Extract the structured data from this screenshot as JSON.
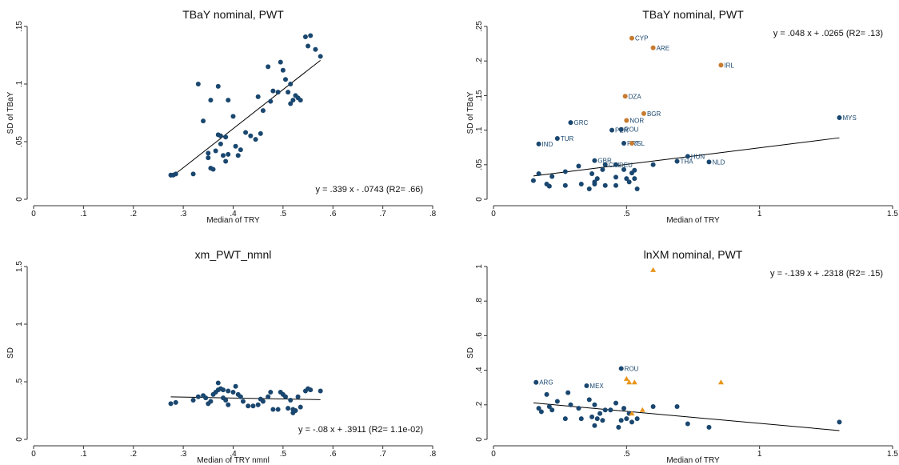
{
  "chart_data": [
    {
      "type": "scatter",
      "title": "TBaY nominal, PWT",
      "xlabel": "Median of TRY",
      "ylabel": "SD of TBaY",
      "xlim": [
        0,
        0.8
      ],
      "ylim": [
        0,
        0.15
      ],
      "xticks": [
        0,
        {
          "value": 0.1,
          "label": ".1"
        },
        {
          "value": 0.2,
          "label": ".2"
        },
        {
          "value": 0.3,
          "label": ".3"
        },
        {
          "value": 0.4,
          "label": ".4"
        },
        {
          "value": 0.5,
          "label": ".5"
        },
        {
          "value": 0.6,
          "label": ".6"
        },
        {
          "value": 0.7,
          "label": ".7"
        },
        {
          "value": 0.8,
          "label": ".8"
        }
      ],
      "yticks": [
        0,
        {
          "value": 0.05,
          "label": ".05"
        },
        {
          "value": 0.1,
          "label": ".1"
        },
        {
          "value": 0.15,
          "label": ".15"
        }
      ],
      "annotation": "y =  .339 x -  .0743 (R2=  .66)",
      "annotation_position": "bottom-right",
      "fit_line": {
        "x": [
          0.275,
          0.575
        ],
        "y": [
          0.0189,
          0.1206
        ]
      },
      "series": [
        {
          "color": "#1a476f",
          "marker": "circle",
          "x": [
            0.275,
            0.28,
            0.285,
            0.32,
            0.33,
            0.34,
            0.35,
            0.35,
            0.355,
            0.355,
            0.36,
            0.365,
            0.37,
            0.37,
            0.375,
            0.375,
            0.38,
            0.385,
            0.385,
            0.39,
            0.39,
            0.4,
            0.405,
            0.41,
            0.415,
            0.425,
            0.435,
            0.445,
            0.45,
            0.455,
            0.46,
            0.47,
            0.475,
            0.48,
            0.49,
            0.495,
            0.5,
            0.505,
            0.51,
            0.515,
            0.515,
            0.52,
            0.525,
            0.53,
            0.535,
            0.545,
            0.55,
            0.555,
            0.565,
            0.575
          ],
          "values": [
            0.021,
            0.021,
            0.022,
            0.022,
            0.1,
            0.068,
            0.04,
            0.036,
            0.086,
            0.027,
            0.026,
            0.042,
            0.098,
            0.056,
            0.048,
            0.055,
            0.038,
            0.054,
            0.033,
            0.086,
            0.039,
            0.072,
            0.046,
            0.038,
            0.043,
            0.058,
            0.055,
            0.052,
            0.089,
            0.057,
            0.077,
            0.115,
            0.085,
            0.094,
            0.093,
            0.119,
            0.112,
            0.104,
            0.093,
            0.1,
            0.083,
            0.086,
            0.09,
            0.088,
            0.086,
            0.141,
            0.133,
            0.142,
            0.13,
            0.124
          ]
        }
      ]
    },
    {
      "type": "scatter",
      "title": "TBaY nominal, PWT",
      "xlabel": "Median of TRY",
      "ylabel": "SD of TBaY",
      "xlim": [
        0,
        1.5
      ],
      "ylim": [
        0,
        0.25
      ],
      "xticks": [
        0,
        {
          "value": 0.5,
          "label": ".5"
        },
        1,
        1.5
      ],
      "yticks": [
        0,
        {
          "value": 0.05,
          "label": ".05"
        },
        {
          "value": 0.1,
          "label": ".1"
        },
        {
          "value": 0.15,
          "label": ".15"
        },
        {
          "value": 0.2,
          "label": ".2"
        },
        {
          "value": 0.25,
          "label": ".25"
        }
      ],
      "annotation": "y =  .048 x +  .0265 (R2=  .13)",
      "annotation_position": "top-right",
      "fit_line": {
        "x": [
          0.15,
          1.3
        ],
        "y": [
          0.0337,
          0.0889
        ]
      },
      "series": [
        {
          "color": "#1a476f",
          "marker": "circle",
          "x": [
            1.3,
            0.29,
            0.445,
            0.48,
            0.24,
            0.17,
            0.49,
            0.73,
            0.69,
            0.81,
            0.38,
            0.42,
            0.46,
            0.15,
            0.17,
            0.2,
            0.21,
            0.22,
            0.27,
            0.27,
            0.32,
            0.33,
            0.36,
            0.37,
            0.38,
            0.38,
            0.39,
            0.41,
            0.42,
            0.46,
            0.46,
            0.49,
            0.5,
            0.51,
            0.52,
            0.53,
            0.53,
            0.54,
            0.6
          ],
          "values": [
            0.118,
            0.111,
            0.1,
            0.101,
            0.088,
            0.08,
            0.081,
            0.062,
            0.055,
            0.054,
            0.056,
            0.05,
            0.05,
            0.027,
            0.037,
            0.022,
            0.019,
            0.033,
            0.04,
            0.02,
            0.048,
            0.022,
            0.015,
            0.037,
            0.025,
            0.022,
            0.03,
            0.043,
            0.02,
            0.032,
            0.02,
            0.043,
            0.03,
            0.025,
            0.038,
            0.042,
            0.03,
            0.015,
            0.05
          ],
          "labels": [
            "MYS",
            "GRC",
            "PER",
            "ROU",
            "TUR",
            "IND",
            "PRT",
            "HUN",
            "THA",
            "NLD",
            "GBR",
            "CHL",
            "DEU",
            null,
            null,
            null,
            null,
            null,
            null,
            null,
            null,
            null,
            null,
            null,
            null,
            null,
            null,
            null,
            null,
            null,
            null,
            null,
            null,
            null,
            null,
            null,
            null,
            null,
            null
          ]
        },
        {
          "color": "#c87b2f",
          "marker": "circle",
          "x": [
            0.52,
            0.6,
            0.855,
            0.495,
            0.565,
            0.5,
            0.52
          ],
          "values": [
            0.233,
            0.219,
            0.194,
            0.149,
            0.124,
            0.114,
            0.081
          ],
          "labels": [
            "CYP",
            "ARE",
            "IRL",
            "DZA",
            "BGR",
            "NOR",
            "ISL"
          ]
        }
      ]
    },
    {
      "type": "scatter",
      "title": "xm_PWT_nmnl",
      "xlabel": "Median of TRY nmnl",
      "ylabel": "SD",
      "xlim": [
        0,
        0.8
      ],
      "ylim": [
        0,
        1.5
      ],
      "xticks": [
        0,
        {
          "value": 0.1,
          "label": ".1"
        },
        {
          "value": 0.2,
          "label": ".2"
        },
        {
          "value": 0.3,
          "label": ".3"
        },
        {
          "value": 0.4,
          "label": ".4"
        },
        {
          "value": 0.5,
          "label": ".5"
        },
        {
          "value": 0.6,
          "label": ".6"
        },
        {
          "value": 0.7,
          "label": ".7"
        },
        {
          "value": 0.8,
          "label": ".8"
        }
      ],
      "yticks": [
        0,
        {
          "value": 0.5,
          "label": ".5"
        },
        1,
        1.5
      ],
      "annotation": "y = -.08 x +  .3911 (R2= 1.1e-02)",
      "annotation_position": "bottom-right",
      "fit_line": {
        "x": [
          0.275,
          0.575
        ],
        "y": [
          0.369,
          0.345
        ]
      },
      "series": [
        {
          "color": "#1a476f",
          "marker": "circle",
          "x": [
            0.275,
            0.285,
            0.32,
            0.33,
            0.34,
            0.345,
            0.35,
            0.355,
            0.36,
            0.365,
            0.37,
            0.37,
            0.375,
            0.38,
            0.38,
            0.385,
            0.39,
            0.39,
            0.4,
            0.405,
            0.41,
            0.415,
            0.42,
            0.43,
            0.44,
            0.45,
            0.455,
            0.46,
            0.47,
            0.475,
            0.48,
            0.49,
            0.495,
            0.5,
            0.505,
            0.51,
            0.515,
            0.52,
            0.52,
            0.525,
            0.53,
            0.535,
            0.545,
            0.55,
            0.555,
            0.575
          ],
          "values": [
            0.31,
            0.32,
            0.34,
            0.37,
            0.38,
            0.36,
            0.31,
            0.33,
            0.39,
            0.41,
            0.49,
            0.43,
            0.44,
            0.43,
            0.36,
            0.34,
            0.42,
            0.3,
            0.41,
            0.46,
            0.39,
            0.37,
            0.33,
            0.29,
            0.29,
            0.3,
            0.35,
            0.33,
            0.37,
            0.41,
            0.26,
            0.26,
            0.41,
            0.39,
            0.37,
            0.27,
            0.34,
            0.23,
            0.26,
            0.25,
            0.37,
            0.28,
            0.42,
            0.44,
            0.43,
            0.42
          ]
        }
      ]
    },
    {
      "type": "scatter",
      "title": "lnXM nominal, PWT",
      "xlabel": "Median of TRY",
      "ylabel": "SD",
      "xlim": [
        0,
        1.5
      ],
      "ylim": [
        0,
        1
      ],
      "xticks": [
        0,
        {
          "value": 0.5,
          "label": ".5"
        },
        1,
        1.5
      ],
      "yticks": [
        0,
        {
          "value": 0.2,
          "label": ".2"
        },
        {
          "value": 0.4,
          "label": ".4"
        },
        {
          "value": 0.6,
          "label": ".6"
        },
        {
          "value": 0.8,
          "label": ".8"
        },
        1
      ],
      "annotation": "y = -.139 x +  .2318 (R2=  .15)",
      "annotation_position": "top-right",
      "fit_line": {
        "x": [
          0.15,
          1.3
        ],
        "y": [
          0.211,
          0.051
        ]
      },
      "series": [
        {
          "color": "#1a476f",
          "marker": "circle",
          "x": [
            0.16,
            0.35,
            0.48,
            0.17,
            0.18,
            0.2,
            0.21,
            0.22,
            0.24,
            0.27,
            0.28,
            0.29,
            0.32,
            0.33,
            0.36,
            0.37,
            0.38,
            0.38,
            0.39,
            0.4,
            0.41,
            0.42,
            0.44,
            0.46,
            0.47,
            0.48,
            0.49,
            0.5,
            0.51,
            0.52,
            0.54,
            0.6,
            0.69,
            0.73,
            0.81,
            1.3
          ],
          "values": [
            0.33,
            0.31,
            0.41,
            0.18,
            0.16,
            0.26,
            0.19,
            0.17,
            0.22,
            0.12,
            0.27,
            0.2,
            0.18,
            0.12,
            0.23,
            0.13,
            0.08,
            0.2,
            0.12,
            0.15,
            0.11,
            0.17,
            0.17,
            0.21,
            0.07,
            0.11,
            0.18,
            0.12,
            0.15,
            0.1,
            0.12,
            0.19,
            0.19,
            0.09,
            0.07,
            0.1
          ],
          "labels": [
            "ARG",
            "MEX",
            "ROU",
            null,
            null,
            null,
            null,
            null,
            null,
            null,
            null,
            null,
            null,
            null,
            null,
            null,
            null,
            null,
            null,
            null,
            null,
            null,
            null,
            null,
            null,
            null,
            null,
            null,
            null,
            null,
            null,
            null,
            null,
            null,
            null,
            null
          ]
        },
        {
          "color": "#e8941a",
          "marker": "triangle",
          "x": [
            0.6,
            0.5,
            0.51,
            0.53,
            0.52,
            0.56,
            0.855
          ],
          "values": [
            0.98,
            0.35,
            0.33,
            0.33,
            0.15,
            0.17,
            0.33
          ]
        }
      ]
    }
  ]
}
